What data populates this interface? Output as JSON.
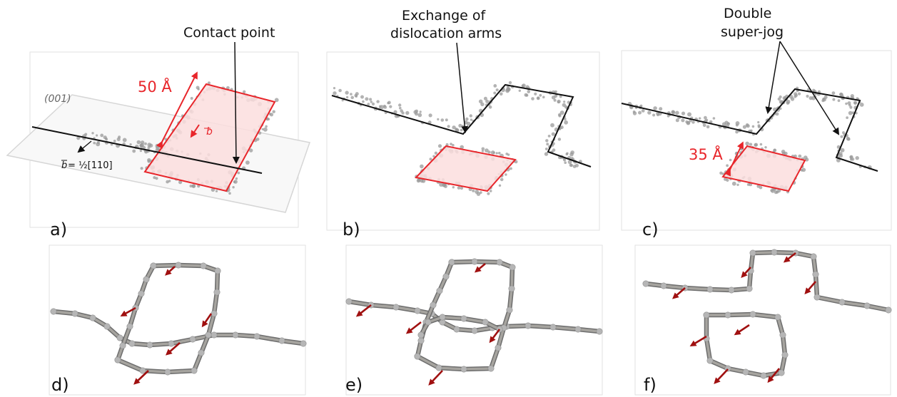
{
  "panels": {
    "a": {
      "label": "a)"
    },
    "b": {
      "label": "b)"
    },
    "c": {
      "label": "c)"
    },
    "d": {
      "label": "d)"
    },
    "e": {
      "label": "e)"
    },
    "f": {
      "label": "f)"
    }
  },
  "annotations": {
    "contact_point": "Contact point",
    "exchange_line1": "Exchange of",
    "exchange_line2": "dislocation arms",
    "double_line1": "Double",
    "double_line2": "super-jog",
    "plane": "(001)",
    "size_50": "50 Å",
    "size_35": "35 Å",
    "b_vec": "b",
    "b_eq_lhs": "b",
    "b_eq_rest": "= ½[110]"
  },
  "colors": {
    "accent_red": "#e8262b",
    "dislocation_line": "#111111",
    "atom_grey": "#9a9a9a",
    "burgers_arrow": "#a01010"
  }
}
